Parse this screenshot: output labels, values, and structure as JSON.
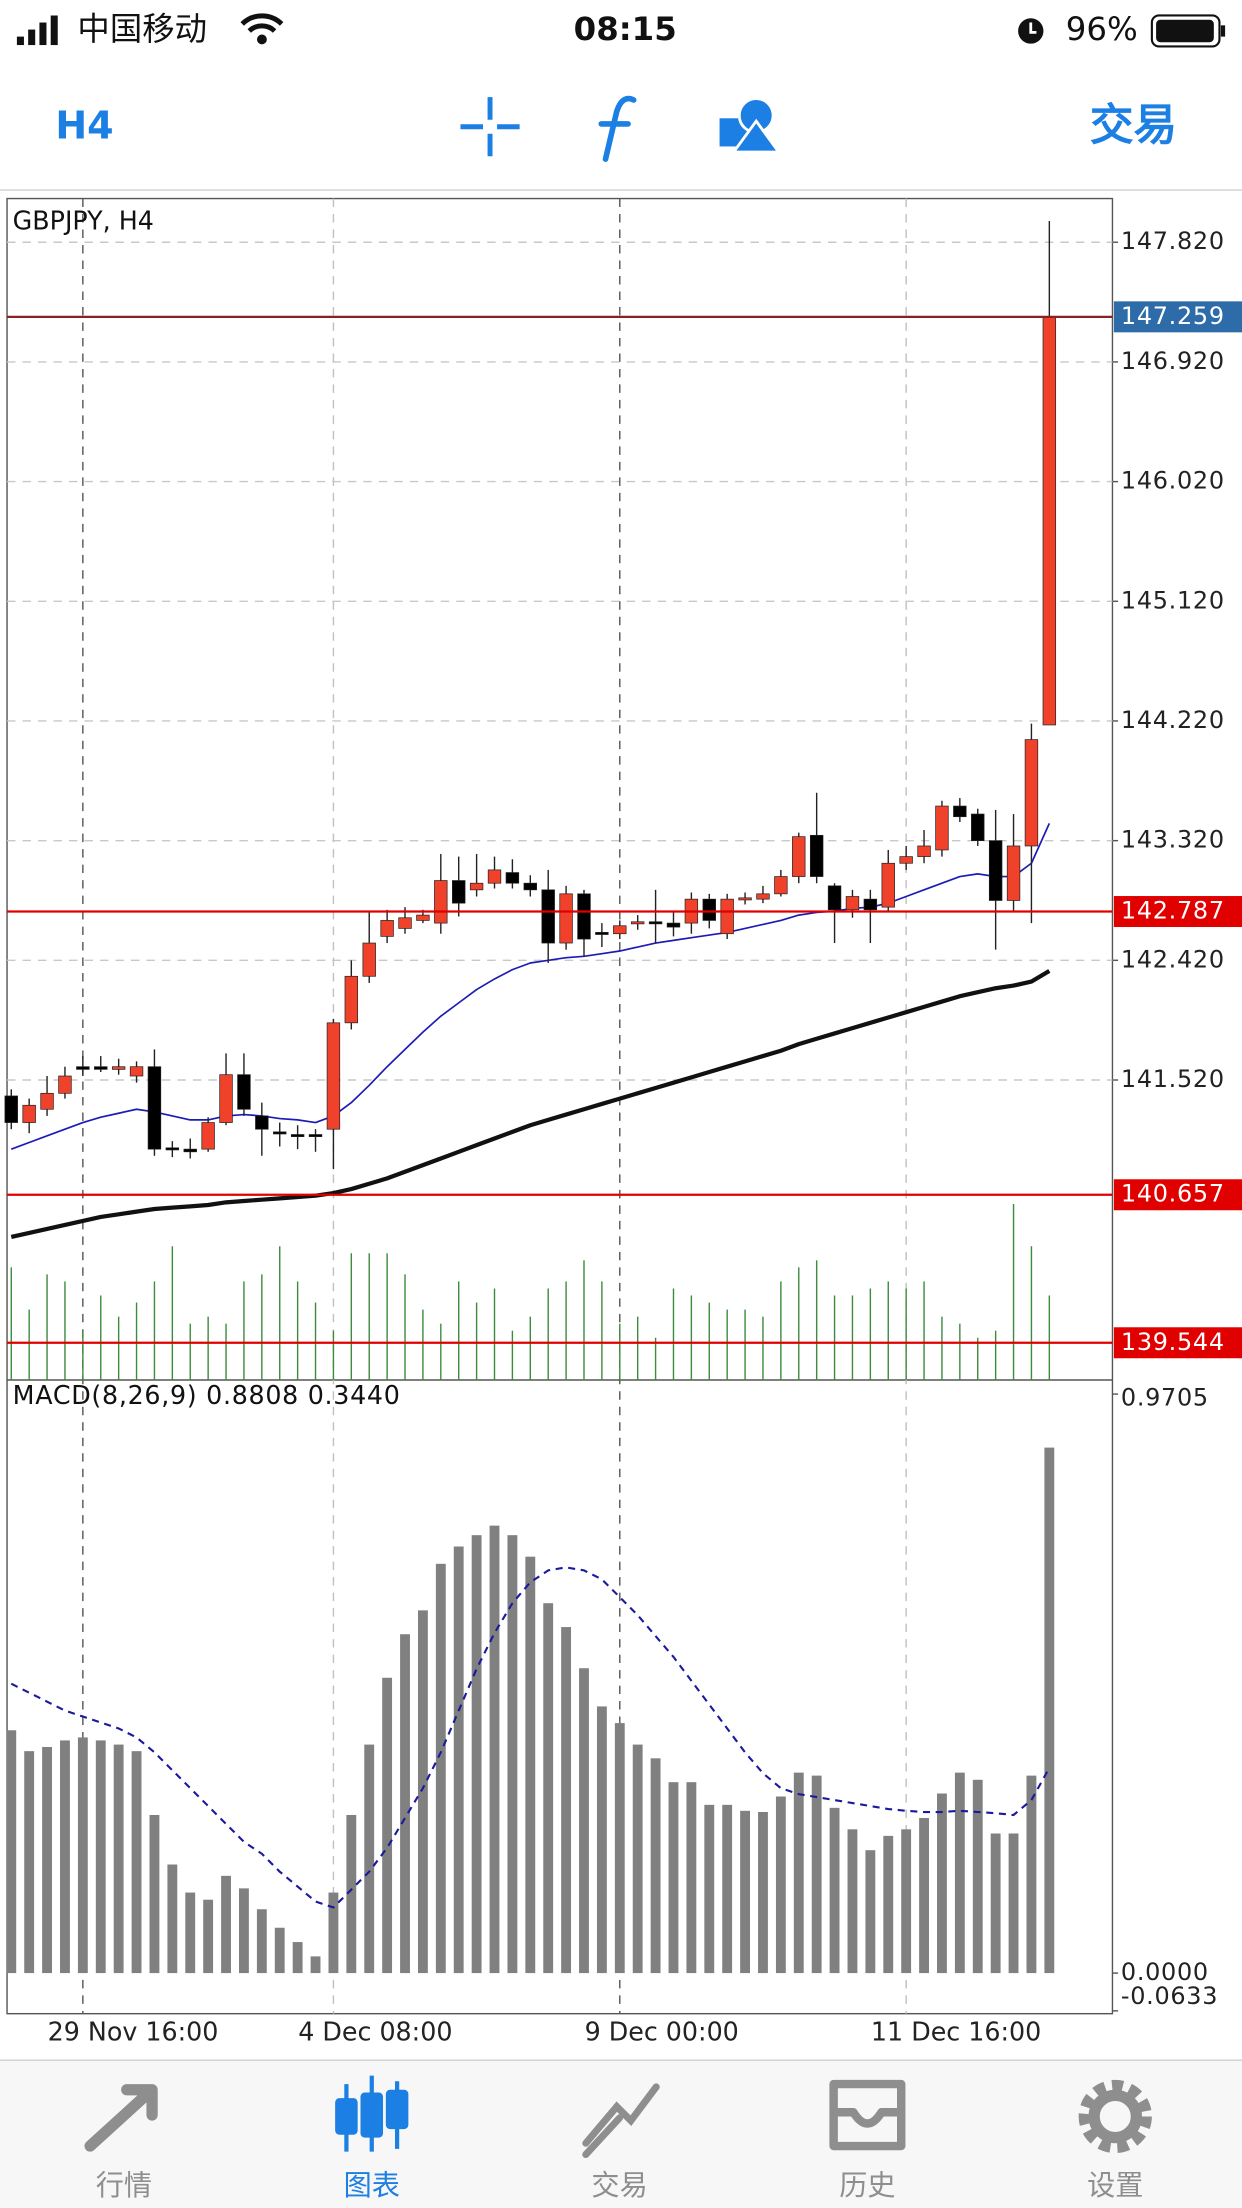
{
  "status_bar": {
    "carrier": "中国移动",
    "time": "08:15",
    "battery": "96%"
  },
  "toolbar": {
    "timeframe": "H4",
    "trade": "交易"
  },
  "chart_data": [
    {
      "type": "candlestick",
      "title": "GBPJPY, H4",
      "categories": [
        null,
        null,
        null,
        null,
        "29 Nov 16:00",
        null,
        null,
        null,
        null,
        null,
        null,
        null,
        null,
        null,
        null,
        null,
        null,
        null,
        "4 Dec 08:00",
        null,
        null,
        null,
        null,
        null,
        null,
        null,
        null,
        null,
        null,
        null,
        null,
        null,
        null,
        null,
        "9 Dec 00:00",
        null,
        null,
        null,
        null,
        null,
        null,
        null,
        null,
        null,
        null,
        null,
        null,
        null,
        null,
        null,
        "11 Dec 16:00",
        null,
        null,
        null,
        null,
        null,
        null,
        null,
        null
      ],
      "open": [
        141.4,
        141.2,
        141.3,
        141.42,
        141.62,
        141.62,
        141.6,
        141.55,
        141.62,
        141.01,
        141.0,
        141.0,
        141.2,
        141.56,
        141.25,
        141.13,
        141.11,
        141.11,
        141.15,
        141.95,
        142.3,
        142.6,
        142.66,
        142.72,
        142.7,
        143.02,
        142.95,
        143.0,
        143.08,
        143.0,
        142.95,
        142.55,
        142.92,
        142.63,
        142.62,
        142.7,
        142.71,
        142.7,
        142.7,
        142.88,
        142.62,
        142.88,
        142.88,
        142.92,
        143.05,
        143.36,
        142.98,
        142.8,
        142.88,
        142.82,
        143.15,
        143.2,
        143.25,
        143.58,
        143.52,
        143.32,
        142.87,
        143.28,
        144.19
      ],
      "high": [
        141.45,
        141.38,
        141.55,
        141.62,
        141.7,
        141.7,
        141.68,
        141.66,
        141.75,
        141.06,
        141.08,
        141.24,
        141.72,
        141.72,
        141.35,
        141.2,
        141.18,
        141.15,
        141.98,
        142.42,
        142.78,
        142.8,
        142.82,
        142.8,
        143.22,
        143.2,
        143.22,
        143.2,
        143.18,
        143.06,
        143.1,
        142.98,
        142.95,
        142.7,
        142.72,
        142.76,
        142.95,
        142.78,
        142.93,
        142.92,
        142.92,
        142.93,
        142.98,
        143.1,
        143.38,
        143.68,
        143.0,
        142.95,
        142.95,
        143.25,
        143.28,
        143.4,
        143.62,
        143.64,
        143.56,
        143.55,
        143.52,
        144.2,
        147.98
      ],
      "low": [
        141.15,
        141.12,
        141.25,
        141.38,
        141.55,
        141.58,
        141.56,
        141.5,
        140.95,
        140.94,
        140.93,
        140.98,
        141.18,
        141.25,
        140.95,
        141.02,
        141.0,
        140.98,
        140.85,
        141.9,
        142.25,
        142.55,
        142.62,
        142.7,
        142.62,
        142.75,
        142.9,
        142.96,
        142.96,
        142.9,
        142.4,
        142.5,
        142.45,
        142.52,
        142.58,
        142.65,
        142.55,
        142.6,
        142.62,
        142.66,
        142.58,
        142.84,
        142.85,
        142.9,
        143.0,
        143.0,
        142.55,
        142.74,
        142.55,
        142.78,
        143.1,
        143.15,
        143.2,
        143.46,
        143.28,
        142.5,
        142.78,
        142.7,
        144.19
      ],
      "close": [
        141.2,
        141.33,
        141.42,
        141.55,
        141.6,
        141.6,
        141.62,
        141.62,
        141.0,
        141.0,
        140.98,
        141.2,
        141.56,
        141.3,
        141.15,
        141.12,
        141.1,
        141.1,
        141.95,
        142.3,
        142.55,
        142.72,
        142.74,
        142.76,
        143.02,
        142.85,
        143.0,
        143.1,
        143.0,
        142.95,
        142.55,
        142.92,
        142.58,
        142.62,
        142.68,
        142.71,
        142.7,
        142.67,
        142.88,
        142.72,
        142.88,
        142.89,
        142.92,
        143.05,
        143.35,
        143.05,
        142.8,
        142.9,
        142.8,
        143.15,
        143.2,
        143.28,
        143.58,
        143.5,
        143.32,
        142.87,
        143.28,
        144.08,
        147.259
      ],
      "up_color": "#f0412b",
      "down_color": "#000000",
      "series": [
        {
          "color": "#1c1cb4",
          "width": 1.2,
          "values": [
            141.0,
            141.05,
            141.1,
            141.15,
            141.2,
            141.24,
            141.27,
            141.3,
            141.28,
            141.25,
            141.22,
            141.22,
            141.25,
            141.26,
            141.25,
            141.23,
            141.22,
            141.2,
            141.25,
            141.35,
            141.48,
            141.62,
            141.75,
            141.88,
            142.0,
            142.1,
            142.2,
            142.28,
            142.35,
            142.4,
            142.42,
            142.44,
            142.45,
            142.47,
            142.49,
            142.52,
            142.55,
            142.57,
            142.59,
            142.61,
            142.63,
            142.66,
            142.69,
            142.72,
            142.76,
            142.78,
            142.79,
            142.81,
            142.82,
            142.85,
            142.9,
            142.95,
            143.0,
            143.05,
            143.07,
            143.05,
            143.05,
            143.15,
            143.45
          ]
        },
        {
          "color": "#111111",
          "width": 3,
          "values": [
            140.34,
            140.37,
            140.4,
            140.43,
            140.46,
            140.49,
            140.51,
            140.53,
            140.55,
            140.56,
            140.57,
            140.58,
            140.6,
            140.61,
            140.62,
            140.63,
            140.64,
            140.65,
            140.67,
            140.7,
            140.74,
            140.78,
            140.83,
            140.88,
            140.93,
            140.98,
            141.03,
            141.08,
            141.13,
            141.18,
            141.22,
            141.26,
            141.3,
            141.34,
            141.38,
            141.42,
            141.46,
            141.5,
            141.54,
            141.58,
            141.62,
            141.66,
            141.7,
            141.74,
            141.79,
            141.83,
            141.87,
            141.91,
            141.95,
            141.99,
            142.03,
            142.07,
            142.11,
            142.15,
            142.18,
            142.21,
            142.23,
            142.26,
            142.34
          ]
        }
      ],
      "volume": {
        "color": "#3c8c3c",
        "values": [
          80,
          50,
          75,
          70,
          35,
          60,
          45,
          55,
          70,
          95,
          40,
          45,
          40,
          70,
          75,
          95,
          70,
          55,
          35,
          90,
          90,
          90,
          75,
          50,
          40,
          70,
          55,
          65,
          35,
          45,
          65,
          70,
          85,
          70,
          40,
          45,
          30,
          65,
          60,
          55,
          50,
          50,
          45,
          70,
          80,
          85,
          60,
          60,
          65,
          70,
          65,
          70,
          45,
          40,
          30,
          35,
          125,
          95,
          60
        ]
      },
      "levels": [
        {
          "value": 147.259,
          "color": "#8b2020",
          "label_color": "#2d6ca8"
        },
        {
          "value": 142.787,
          "color": "#e00000",
          "label_color": "#e00000"
        },
        {
          "value": 140.657,
          "color": "#e00000",
          "label_color": "#e00000"
        },
        {
          "value": 139.544,
          "color": "#e00000",
          "label_color": "#e00000"
        }
      ],
      "ylim": [
        139.264,
        148.138
      ],
      "yticks": [
        {
          "value": 147.82,
          "label": "147.820"
        },
        {
          "value": 146.92,
          "label": "146.920"
        },
        {
          "value": 146.02,
          "label": "146.020"
        },
        {
          "value": 145.12,
          "label": "145.120"
        },
        {
          "value": 144.22,
          "label": "144.220"
        },
        {
          "value": 143.32,
          "label": "143.320"
        },
        {
          "value": 142.42,
          "label": "142.420"
        },
        {
          "value": 141.52,
          "label": "141.520"
        }
      ],
      "grid": true
    },
    {
      "type": "bar",
      "title": "MACD(8,26,9) 0.8808 0.3440",
      "color": "#808080",
      "values": [
        0.407,
        0.372,
        0.379,
        0.39,
        0.395,
        0.39,
        0.383,
        0.372,
        0.265,
        0.182,
        0.135,
        0.123,
        0.163,
        0.142,
        0.107,
        0.076,
        0.052,
        0.028,
        0.135,
        0.265,
        0.383,
        0.495,
        0.568,
        0.608,
        0.686,
        0.715,
        0.734,
        0.75,
        0.734,
        0.698,
        0.62,
        0.58,
        0.511,
        0.447,
        0.419,
        0.383,
        0.36,
        0.32,
        0.32,
        0.282,
        0.282,
        0.272,
        0.27,
        0.296,
        0.336,
        0.331,
        0.277,
        0.241,
        0.206,
        0.23,
        0.241,
        0.26,
        0.301,
        0.336,
        0.324,
        0.234,
        0.234,
        0.331,
        0.8808
      ],
      "series": [
        {
          "color": "#1a1a9c",
          "dashed": true,
          "values": [
            0.485,
            0.47,
            0.455,
            0.44,
            0.43,
            0.42,
            0.41,
            0.395,
            0.37,
            0.34,
            0.31,
            0.28,
            0.25,
            0.22,
            0.2,
            0.17,
            0.145,
            0.12,
            0.11,
            0.14,
            0.17,
            0.21,
            0.26,
            0.31,
            0.37,
            0.44,
            0.51,
            0.57,
            0.62,
            0.655,
            0.675,
            0.68,
            0.675,
            0.66,
            0.63,
            0.6,
            0.565,
            0.53,
            0.49,
            0.45,
            0.41,
            0.37,
            0.335,
            0.31,
            0.3,
            0.295,
            0.29,
            0.285,
            0.28,
            0.275,
            0.272,
            0.27,
            0.27,
            0.272,
            0.27,
            0.268,
            0.265,
            0.29,
            0.344
          ]
        }
      ],
      "ylim": [
        -0.0633,
        0.9705
      ],
      "yticks": [
        {
          "value": 0.9705,
          "label": "0.9705"
        },
        {
          "value": 0,
          "label": "0.0000"
        },
        {
          "value": -0.0633,
          "label": "-0.0633"
        }
      ]
    }
  ],
  "tab_bar": {
    "items": [
      "行情",
      "图表",
      "交易",
      "历史",
      "设置"
    ],
    "active": 1
  }
}
